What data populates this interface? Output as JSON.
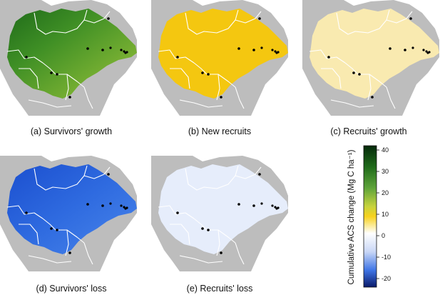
{
  "panels": [
    {
      "id": "a",
      "caption": "(a) Survivors' growth",
      "fill": "green"
    },
    {
      "id": "b",
      "caption": "(b) New recruits",
      "fill": "yellow"
    },
    {
      "id": "c",
      "caption": "(c) Recruits' growth",
      "fill": "paleyellow"
    },
    {
      "id": "d",
      "caption": "(d) Survivors' loss",
      "fill": "blue"
    },
    {
      "id": "e",
      "caption": "(e) Recruits' loss",
      "fill": "paleblue"
    }
  ],
  "legend": {
    "title": "Cumulative ACS change (Mg C ha⁻¹)",
    "ticks": [
      "40",
      "30",
      "20",
      "10",
      "0",
      "-10",
      "-20"
    ],
    "tick_values": [
      40,
      30,
      20,
      10,
      0,
      -10,
      -20
    ],
    "range": [
      -24,
      42
    ]
  },
  "colors": {
    "ocean": "#ffffff",
    "land": "#bdbdbd",
    "border": "#ffffff",
    "site": "#000000"
  }
}
